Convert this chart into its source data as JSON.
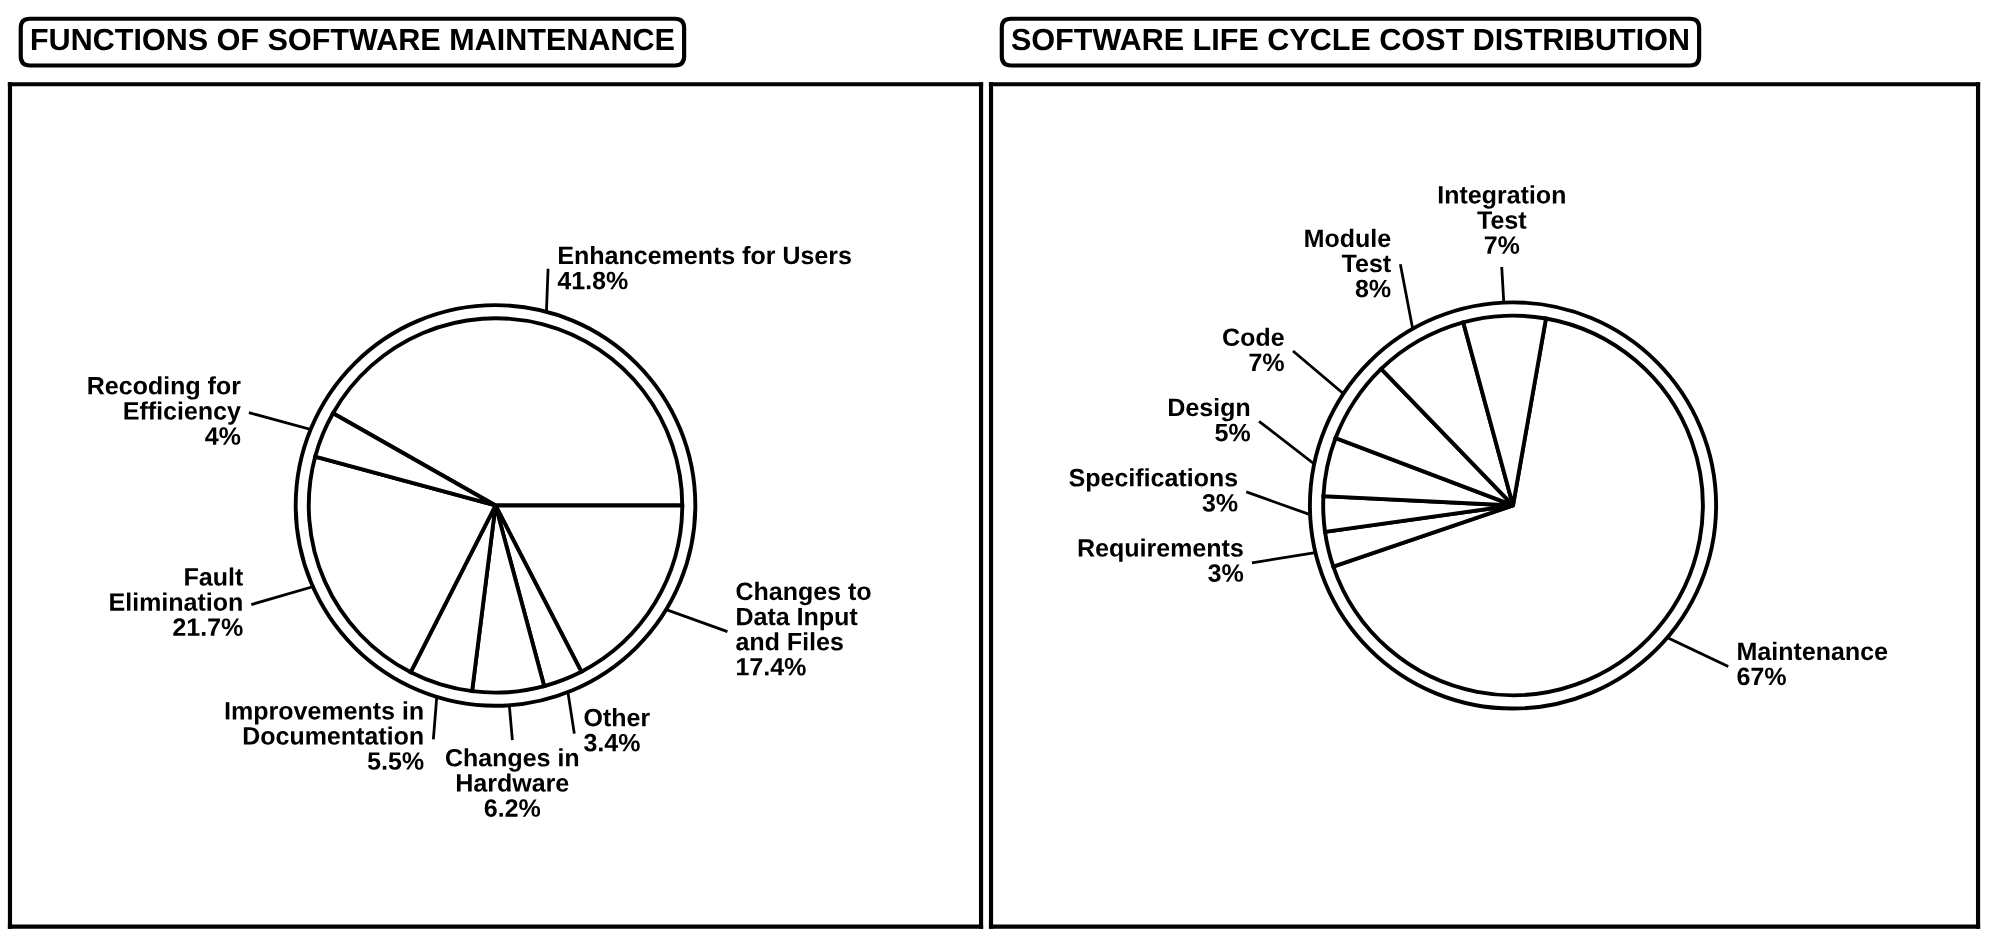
{
  "chart_data": [
    {
      "type": "pie",
      "title": "FUNCTIONS OF SOFTWARE MAINTENANCE",
      "categories": [
        "Enhancements for Users",
        "Changes to\nData Input\nand Files",
        "Other",
        "Changes in\nHardware",
        "Improvements in\nDocumentation",
        "Fault\nElimination",
        "Recoding for\nEfficiency"
      ],
      "values": [
        41.8,
        17.4,
        3.4,
        6.2,
        5.5,
        21.7,
        4
      ],
      "value_labels": [
        "41.8%",
        "17.4%",
        "3.4%",
        "6.2%",
        "5.5%",
        "21.7%",
        "4%"
      ],
      "colors": [
        "#ffffff",
        "#ffffff",
        "#ffffff",
        "#ffffff",
        "#ffffff",
        "#ffffff",
        "#ffffff"
      ]
    },
    {
      "type": "pie",
      "title": "SOFTWARE LIFE CYCLE COST DISTRIBUTION",
      "categories": [
        "Maintenance",
        "Requirements",
        "Specifications",
        "Design",
        "Code",
        "Module\nTest",
        "Integration\nTest"
      ],
      "values": [
        67,
        3,
        3,
        5,
        7,
        8,
        7
      ],
      "value_labels": [
        "67%",
        "3%",
        "3%",
        "5%",
        "7%",
        "8%",
        "7%"
      ],
      "colors": [
        "#ffffff",
        "#ffffff",
        "#ffffff",
        "#ffffff",
        "#ffffff",
        "#ffffff",
        "#ffffff"
      ]
    }
  ]
}
